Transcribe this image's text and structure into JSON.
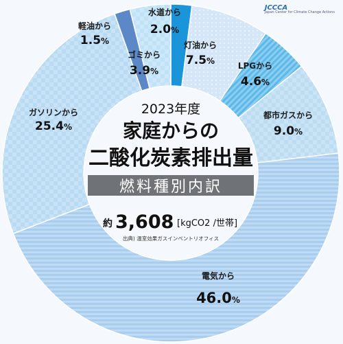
{
  "chart_data": {
    "type": "pie",
    "style": "donut",
    "categories": [
      "水道から",
      "灯油から",
      "LPGから",
      "都市ガスから",
      "電気から",
      "ガソリンから",
      "軽油から",
      "ゴミから"
    ],
    "values": [
      2.0,
      7.5,
      4.6,
      9.0,
      46.0,
      25.4,
      1.5,
      3.9
    ],
    "unit": "%",
    "colors": [
      "#1b95d9",
      "#d4e6f7",
      "#5bb9ea",
      "#bcdcf2",
      "#a9cdef",
      "#b8daf3",
      "#5c88c8",
      "#bfe2f6"
    ]
  },
  "center": {
    "year": "2023年度",
    "title_line1": "家庭からの",
    "title_line2": "二酸化炭素排出量",
    "band": "燃料種別内訳",
    "total_prefix": "約",
    "total_value": "3,608",
    "total_unit": "[kgCO2 /世帯]",
    "source": "出典) 温室効果ガスインベントリオフィス"
  },
  "logo": {
    "text": "JCCCA",
    "subtext": "Japan Center for Climate Change Actions"
  }
}
